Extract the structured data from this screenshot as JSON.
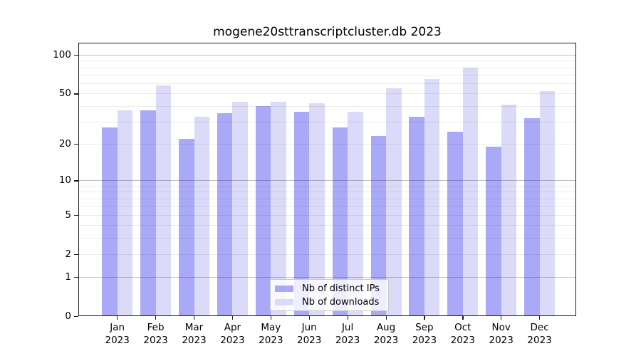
{
  "figure": {
    "background": "#ffffff",
    "title": "mogene20sttranscriptcluster.db 2023"
  },
  "chart_data": {
    "type": "bar",
    "title": "mogene20sttranscriptcluster.db 2023",
    "categories": [
      "Jan",
      "Feb",
      "Mar",
      "Apr",
      "May",
      "Jun",
      "Jul",
      "Aug",
      "Sep",
      "Oct",
      "Nov",
      "Dec"
    ],
    "x_tick_second_line": "2023",
    "series": [
      {
        "name": "Nb of distinct IPs",
        "color": "#a9a9f7",
        "values": [
          27,
          37,
          22,
          35,
          40,
          36,
          27,
          23,
          33,
          25,
          19,
          32
        ]
      },
      {
        "name": "Nb of downloads",
        "color": "#dbdbf9",
        "values": [
          37,
          58,
          33,
          43,
          43,
          42,
          36,
          55,
          65,
          80,
          41,
          52
        ]
      }
    ],
    "y_axis": {
      "scale": "log1p",
      "tick_labels": [
        "0",
        "1",
        "2",
        "5",
        "10",
        "20",
        "50",
        "100"
      ],
      "tick_values": [
        0,
        1,
        2,
        5,
        10,
        20,
        50,
        100
      ],
      "minor_gridlines": [
        2,
        3,
        4,
        5,
        6,
        7,
        8,
        9,
        20,
        30,
        40,
        50,
        60,
        70,
        80,
        90
      ],
      "major_gridlines": [
        1,
        10,
        100
      ],
      "ylim": [
        0,
        124
      ]
    },
    "legend_position": "bottom-center",
    "grid": true
  }
}
